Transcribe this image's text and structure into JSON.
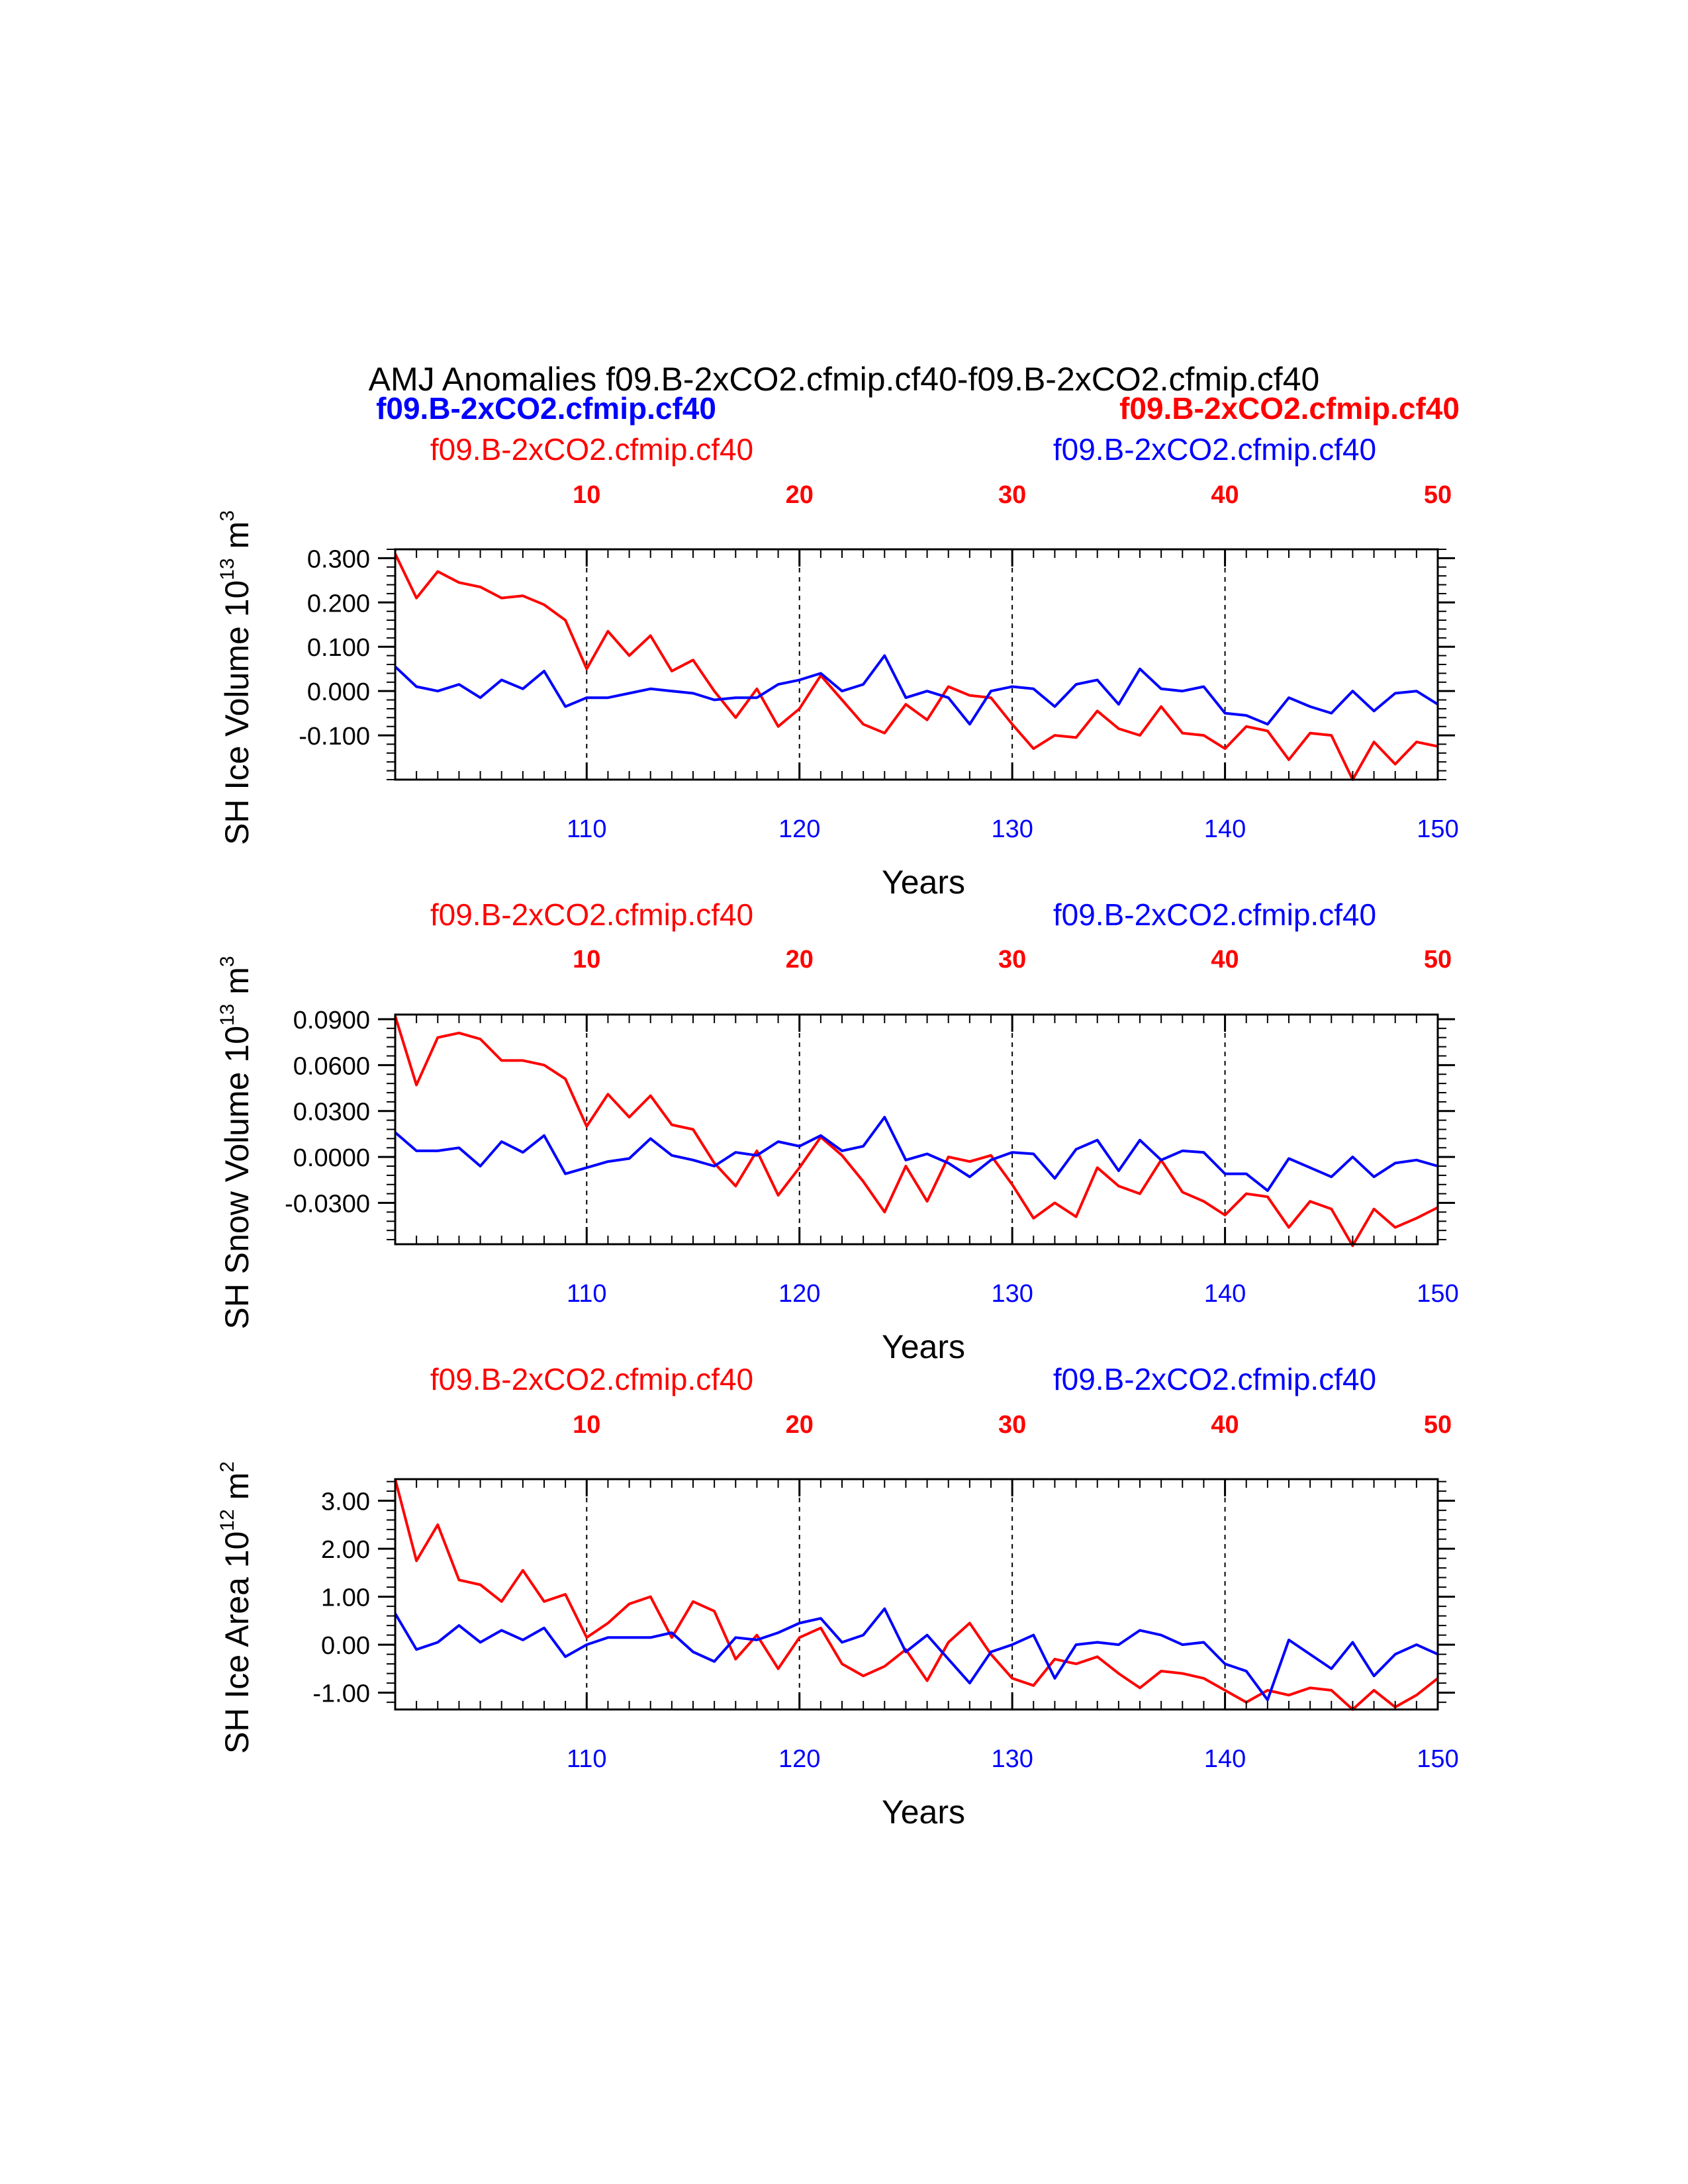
{
  "title": "AMJ Anomalies f09.B-2xCO2.cfmip.cf40-f09.B-2xCO2.cfmip.cf40",
  "legend": {
    "blue_bold": "f09.B-2xCO2.cfmip.cf40",
    "red_bold": "f09.B-2xCO2.cfmip.cf40"
  },
  "colors": {
    "red": "#ff0000",
    "blue": "#0000ff",
    "axis": "#000000"
  },
  "chart_data": [
    {
      "type": "line",
      "ylabel": "SH Ice Volume 10",
      "ylabel_exp": "13",
      "ylabel_unit": " m",
      "ylabel_unit_exp": "3",
      "xlabel": "Years",
      "top_label": "f09.B-2xCO2.cfmip.cf40",
      "right_label": "f09.B-2xCO2.cfmip.cf40",
      "ylim": [
        -0.2,
        0.32
      ],
      "yticks": [
        0.3,
        0.2,
        0.1,
        0.0,
        -0.1
      ],
      "yticklabels": [
        "0.300",
        "0.200",
        "0.100",
        "0.000",
        "-0.100"
      ],
      "yminor_step": 0.02,
      "x_bottom": {
        "range": [
          101,
          150
        ],
        "ticks": [
          110,
          120,
          130,
          140,
          150
        ]
      },
      "x_top": {
        "range": [
          1,
          50
        ],
        "ticks": [
          10,
          20,
          30,
          40,
          50
        ]
      },
      "grid": "dashed vertical at top ticks",
      "series": [
        {
          "color": "red",
          "x_axis": "top",
          "values": [
            0.31,
            0.21,
            0.27,
            0.245,
            0.235,
            0.21,
            0.215,
            0.195,
            0.16,
            0.05,
            0.135,
            0.08,
            0.125,
            0.045,
            0.07,
            0.0,
            -0.06,
            0.005,
            -0.08,
            -0.04,
            0.035,
            -0.02,
            -0.075,
            -0.095,
            -0.03,
            -0.065,
            0.01,
            -0.01,
            -0.015,
            -0.075,
            -0.13,
            -0.1,
            -0.105,
            -0.045,
            -0.085,
            -0.1,
            -0.035,
            -0.095,
            -0.1,
            -0.13,
            -0.08,
            -0.09,
            -0.155,
            -0.095,
            -0.1,
            -0.2,
            -0.115,
            -0.165,
            -0.115,
            -0.125
          ]
        },
        {
          "color": "blue",
          "x_axis": "bottom",
          "values": [
            0.055,
            0.01,
            0.0,
            0.015,
            -0.015,
            0.025,
            0.005,
            0.045,
            -0.035,
            -0.015,
            -0.015,
            -0.005,
            0.005,
            0.0,
            -0.005,
            -0.02,
            -0.015,
            -0.015,
            0.015,
            0.025,
            0.04,
            0.0,
            0.015,
            0.08,
            -0.015,
            0.0,
            -0.015,
            -0.075,
            0.0,
            0.01,
            0.005,
            -0.035,
            0.015,
            0.025,
            -0.03,
            0.05,
            0.005,
            0.0,
            0.01,
            -0.05,
            -0.055,
            -0.075,
            -0.015,
            -0.035,
            -0.05,
            0.0,
            -0.045,
            -0.005,
            0.0,
            -0.03
          ]
        }
      ]
    },
    {
      "type": "line",
      "ylabel": "SH Snow Volume 10",
      "ylabel_exp": "13",
      "ylabel_unit": " m",
      "ylabel_unit_exp": "3",
      "xlabel": "Years",
      "top_label": "f09.B-2xCO2.cfmip.cf40",
      "right_label": "f09.B-2xCO2.cfmip.cf40",
      "ylim": [
        -0.057,
        0.093
      ],
      "yticks": [
        0.09,
        0.06,
        0.03,
        0.0,
        -0.03
      ],
      "yticklabels": [
        "0.0900",
        "0.0600",
        "0.0300",
        "0.0000",
        "-0.0300"
      ],
      "yminor_step": 0.006,
      "x_bottom": {
        "range": [
          101,
          150
        ],
        "ticks": [
          110,
          120,
          130,
          140,
          150
        ]
      },
      "x_top": {
        "range": [
          1,
          50
        ],
        "ticks": [
          10,
          20,
          30,
          40,
          50
        ]
      },
      "grid": "dashed vertical at top ticks",
      "series": [
        {
          "color": "red",
          "x_axis": "top",
          "values": [
            0.092,
            0.047,
            0.078,
            0.081,
            0.077,
            0.063,
            0.063,
            0.06,
            0.051,
            0.02,
            0.041,
            0.026,
            0.04,
            0.021,
            0.018,
            -0.004,
            -0.019,
            0.004,
            -0.025,
            -0.007,
            0.013,
            0.001,
            -0.016,
            -0.036,
            -0.006,
            -0.029,
            0.0,
            -0.003,
            0.001,
            -0.018,
            -0.04,
            -0.03,
            -0.039,
            -0.007,
            -0.019,
            -0.024,
            -0.002,
            -0.023,
            -0.029,
            -0.038,
            -0.024,
            -0.026,
            -0.046,
            -0.029,
            -0.034,
            -0.058,
            -0.034,
            -0.046,
            -0.04,
            -0.033
          ]
        },
        {
          "color": "blue",
          "x_axis": "bottom",
          "values": [
            0.016,
            0.004,
            0.004,
            0.006,
            -0.006,
            0.01,
            0.003,
            0.014,
            -0.011,
            -0.007,
            -0.003,
            -0.001,
            0.012,
            0.001,
            -0.002,
            -0.006,
            0.003,
            0.001,
            0.01,
            0.007,
            0.014,
            0.004,
            0.007,
            0.026,
            -0.002,
            0.002,
            -0.004,
            -0.013,
            -0.002,
            0.003,
            0.002,
            -0.014,
            0.005,
            0.011,
            -0.009,
            0.011,
            -0.002,
            0.004,
            0.003,
            -0.011,
            -0.011,
            -0.022,
            -0.001,
            -0.007,
            -0.013,
            0.0,
            -0.013,
            -0.004,
            -0.002,
            -0.006
          ]
        }
      ]
    },
    {
      "type": "line",
      "ylabel": "SH Ice Area 10",
      "ylabel_exp": "12",
      "ylabel_unit": " m",
      "ylabel_unit_exp": "2",
      "xlabel": "Years",
      "top_label": "f09.B-2xCO2.cfmip.cf40",
      "right_label": "f09.B-2xCO2.cfmip.cf40",
      "ylim": [
        -1.35,
        3.45
      ],
      "yticks": [
        3.0,
        2.0,
        1.0,
        0.0,
        -1.0
      ],
      "yticklabels": [
        "3.00",
        "2.00",
        "1.00",
        "0.00",
        "-1.00"
      ],
      "yminor_step": 0.2,
      "x_bottom": {
        "range": [
          101,
          150
        ],
        "ticks": [
          110,
          120,
          130,
          140,
          150
        ]
      },
      "x_top": {
        "range": [
          1,
          50
        ],
        "ticks": [
          10,
          20,
          30,
          40,
          50
        ]
      },
      "grid": "dashed vertical at top ticks",
      "series": [
        {
          "color": "red",
          "x_axis": "top",
          "values": [
            3.45,
            1.75,
            2.5,
            1.35,
            1.25,
            0.9,
            1.55,
            0.9,
            1.05,
            0.15,
            0.45,
            0.85,
            1.0,
            0.15,
            0.9,
            0.7,
            -0.3,
            0.2,
            -0.5,
            0.15,
            0.35,
            -0.4,
            -0.65,
            -0.45,
            -0.1,
            -0.75,
            0.05,
            0.45,
            -0.2,
            -0.7,
            -0.85,
            -0.3,
            -0.4,
            -0.25,
            -0.6,
            -0.9,
            -0.55,
            -0.6,
            -0.7,
            -0.95,
            -1.2,
            -0.95,
            -1.05,
            -0.9,
            -0.95,
            -1.35,
            -0.95,
            -1.3,
            -1.05,
            -0.7
          ]
        },
        {
          "color": "blue",
          "x_axis": "bottom",
          "values": [
            0.65,
            -0.1,
            0.05,
            0.4,
            0.05,
            0.3,
            0.1,
            0.35,
            -0.25,
            0.0,
            0.15,
            0.15,
            0.15,
            0.25,
            -0.15,
            -0.35,
            0.15,
            0.1,
            0.25,
            0.45,
            0.55,
            0.05,
            0.2,
            0.75,
            -0.15,
            0.2,
            -0.3,
            -0.8,
            -0.15,
            0.0,
            0.2,
            -0.7,
            0.0,
            0.05,
            0.0,
            0.3,
            0.2,
            0.0,
            0.05,
            -0.4,
            -0.55,
            -1.15,
            0.1,
            -0.2,
            -0.5,
            0.05,
            -0.65,
            -0.2,
            0.0,
            -0.2
          ]
        }
      ]
    }
  ]
}
